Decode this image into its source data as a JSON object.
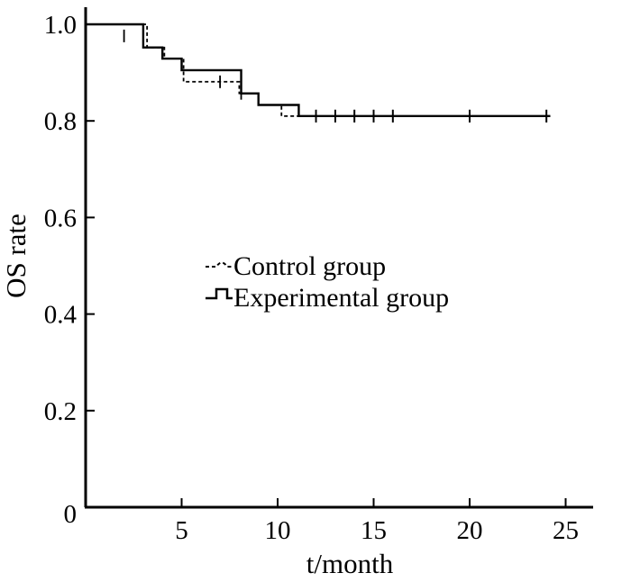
{
  "chart_data": {
    "type": "line",
    "xlabel": "t/month",
    "ylabel": "OS rate",
    "xlim": [
      0,
      26
    ],
    "ylim": [
      0,
      1.02
    ],
    "x_ticks": [
      {
        "value": 5,
        "label": "5"
      },
      {
        "value": 10,
        "label": "10"
      },
      {
        "value": 15,
        "label": "15"
      },
      {
        "value": 20,
        "label": "20"
      },
      {
        "value": 25,
        "label": "25"
      }
    ],
    "y_ticks": [
      {
        "value": 0,
        "label": "0"
      },
      {
        "value": 0.2,
        "label": "0.2"
      },
      {
        "value": 0.4,
        "label": "0.4"
      },
      {
        "value": 0.6,
        "label": "0.6"
      },
      {
        "value": 0.8,
        "label": "0.8"
      },
      {
        "value": 1.0,
        "label": "1.0"
      }
    ],
    "grid": false,
    "legend_position": "center-left",
    "series": [
      {
        "name": "Control group",
        "line_style": "dashed",
        "color": "#000000",
        "steps": [
          [
            0,
            1.0
          ],
          [
            3.2,
            0.952
          ],
          [
            4.1,
            0.929
          ],
          [
            5.1,
            0.881
          ],
          [
            8.0,
            0.857
          ],
          [
            9.0,
            0.833
          ],
          [
            10.2,
            0.81
          ],
          [
            24.2,
            0.81
          ]
        ],
        "censored": [
          [
            7.0,
            0.881
          ],
          [
            12.0,
            0.81
          ],
          [
            13.0,
            0.81
          ],
          [
            14.0,
            0.81
          ],
          [
            15.0,
            0.81
          ],
          [
            16.0,
            0.81
          ],
          [
            20.0,
            0.81
          ],
          [
            24.0,
            0.81
          ]
        ]
      },
      {
        "name": "Experimental group",
        "line_style": "solid",
        "color": "#000000",
        "steps": [
          [
            0,
            1.0
          ],
          [
            3.0,
            0.952
          ],
          [
            4.0,
            0.929
          ],
          [
            5.0,
            0.905
          ],
          [
            8.1,
            0.857
          ],
          [
            9.0,
            0.833
          ],
          [
            11.1,
            0.81
          ],
          [
            24.2,
            0.81
          ]
        ],
        "censored": [
          [
            2.0,
            0.976
          ],
          [
            8.1,
            0.857
          ],
          [
            12.0,
            0.81
          ],
          [
            13.0,
            0.81
          ],
          [
            14.0,
            0.81
          ],
          [
            15.0,
            0.81
          ],
          [
            16.0,
            0.81
          ],
          [
            20.0,
            0.81
          ],
          [
            24.0,
            0.81
          ]
        ]
      }
    ]
  }
}
